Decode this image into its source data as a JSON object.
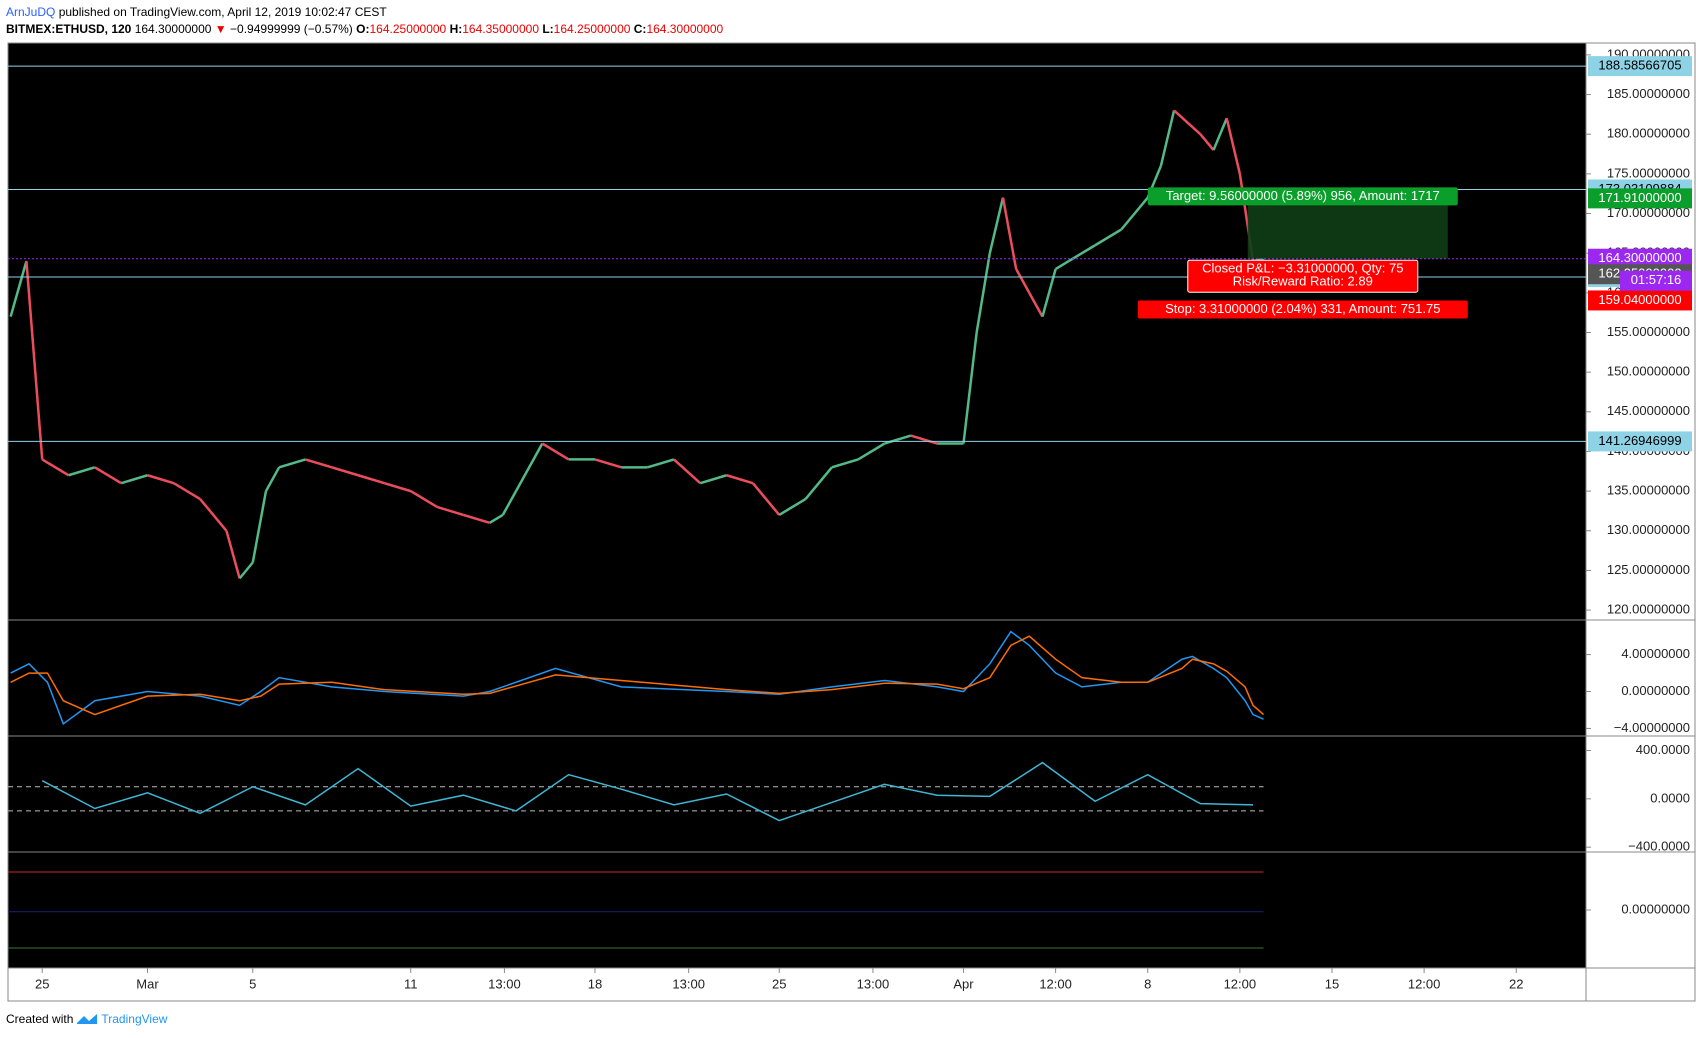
{
  "header": {
    "author": "ArnJuDQ",
    "published": "published on TradingView.com, April 12, 2019 10:02:47 CEST",
    "symbol": "BITMEX:ETHUSD, 120",
    "last": "164.30000000",
    "arrow": "▼",
    "change": "−0.94999999 (−0.57%)",
    "ohlc": [
      {
        "key": "O:",
        "text": "164.25000000"
      },
      {
        "key": "H:",
        "text": "164.35000000"
      },
      {
        "key": "L:",
        "text": "164.25000000"
      },
      {
        "key": "C:",
        "text": "164.30000000"
      }
    ]
  },
  "chart_data": [
    {
      "type": "line",
      "up_color": "#53b987",
      "down_color": "#eb4d5c",
      "x": [
        -1.2,
        -0.6,
        0,
        1,
        2,
        3,
        4,
        5,
        6,
        7,
        7.5,
        8,
        8.5,
        9,
        10,
        11,
        12,
        13,
        14,
        15,
        16,
        17,
        17.5,
        18,
        19,
        20,
        21,
        22,
        23,
        24,
        25,
        26,
        27,
        28,
        29,
        30,
        31,
        32,
        33,
        34,
        35,
        35.5,
        36,
        36.5,
        37,
        37.5,
        38,
        38.5,
        39,
        40,
        41,
        42,
        42.5,
        43,
        44,
        44.5,
        45,
        45.5,
        46,
        46.4
      ],
      "values": [
        157,
        164,
        139,
        137,
        138,
        136,
        137,
        136,
        134,
        130,
        124,
        126,
        135,
        138,
        139,
        138,
        137,
        136,
        135,
        133,
        132,
        131,
        132,
        135,
        141,
        139,
        139,
        138,
        138,
        139,
        136,
        137,
        136,
        132,
        134,
        138,
        139,
        141,
        142,
        141,
        141,
        155,
        165,
        172,
        163,
        160,
        157,
        163,
        164,
        166,
        168,
        172,
        176,
        183,
        180,
        178,
        182,
        175,
        164,
        164.3
      ],
      "xlim": [
        -1.3,
        58.65
      ],
      "xticks": [
        {
          "value": 0,
          "label": "25"
        },
        {
          "value": 4,
          "label": "Mar"
        },
        {
          "value": 8,
          "label": "5"
        },
        {
          "value": 14,
          "label": "11"
        },
        {
          "value": 17.56,
          "label": "13:00"
        },
        {
          "value": 21,
          "label": "18"
        },
        {
          "value": 24.56,
          "label": "13:00"
        },
        {
          "value": 28,
          "label": "25"
        },
        {
          "value": 31.56,
          "label": "13:00"
        },
        {
          "value": 35,
          "label": "Apr"
        },
        {
          "value": 38.5,
          "label": "12:00"
        },
        {
          "value": 42,
          "label": "8"
        },
        {
          "value": 45.5,
          "label": "12:00"
        },
        {
          "value": 49,
          "label": "15"
        },
        {
          "value": 52.5,
          "label": "12:00"
        },
        {
          "value": 56,
          "label": "22"
        }
      ],
      "ylim": [
        118.75,
        191.5
      ],
      "yticks": [
        {
          "value": 120,
          "label": "120.00000000"
        },
        {
          "value": 125,
          "label": "125.00000000"
        },
        {
          "value": 130,
          "label": "130.00000000"
        },
        {
          "value": 135,
          "label": "135.00000000"
        },
        {
          "value": 140,
          "label": "140.00000000"
        },
        {
          "value": 145,
          "label": "145.00000000"
        },
        {
          "value": 150,
          "label": "150.00000000"
        },
        {
          "value": 155,
          "label": "155.00000000"
        },
        {
          "value": 160,
          "label": "160.00000000"
        },
        {
          "value": 165,
          "label": "165.00000000"
        },
        {
          "value": 170,
          "label": "170.00000000"
        },
        {
          "value": 175,
          "label": "175.00000000"
        },
        {
          "value": 180,
          "label": "180.00000000"
        },
        {
          "value": 185,
          "label": "185.00000000"
        },
        {
          "value": 190,
          "label": "190.00000000"
        }
      ],
      "levels": [
        188.58566705,
        173.03109884,
        161.99042299,
        141.26946999
      ],
      "level_color": "#8ed2e6",
      "price_tags": [
        {
          "value": 171.91,
          "label": "171.91000000",
          "color": "#0a9e2a"
        },
        {
          "value": 164.3,
          "label": "164.30000000",
          "color": "#9c27f0"
        },
        {
          "value": 162.35,
          "label": "162.35000000",
          "color": "#555555"
        },
        {
          "value": 159.04,
          "label": "159.04000000",
          "color": "#ff0000"
        }
      ],
      "countdown": "01:57:16",
      "trade": {
        "x": [
          45.8,
          53.4
        ],
        "target": "Target: 9.56000000 (5.89%) 956, Amount: 1717",
        "pnl": "Closed P&L: −3.31000000, Qty: 75",
        "ratio": "Risk/Reward Ratio: 2.89",
        "stop": "Stop: 3.31000000 (2.04%) 331, Amount: 751.75"
      }
    },
    {
      "type": "line",
      "x": [
        -1.2,
        -0.5,
        0.2,
        0.8,
        2,
        4,
        6,
        7.5,
        8.3,
        9,
        11,
        13,
        16,
        17,
        19.5,
        22,
        26,
        28,
        30,
        32,
        34,
        35,
        36,
        36.8,
        37.5,
        38.5,
        39.5,
        41,
        42,
        43.3,
        43.7,
        44.5,
        45,
        45.7,
        46,
        46.4
      ],
      "series": [
        {
          "color": "#2196f3",
          "values": [
            2,
            3,
            1,
            -3.5,
            -1,
            0,
            -0.5,
            -1.5,
            0,
            1.5,
            0.5,
            0,
            -0.5,
            0,
            2.5,
            0.5,
            0,
            -0.3,
            0.5,
            1.2,
            0.5,
            0,
            3,
            6.5,
            5,
            2,
            0.5,
            1,
            1,
            3.5,
            3.8,
            2.5,
            1.5,
            -1,
            -2.5,
            -3
          ]
        },
        {
          "color": "#ff6d00",
          "values": [
            1,
            2,
            2,
            -1,
            -2.5,
            -0.5,
            -0.3,
            -1,
            -0.5,
            0.8,
            1,
            0.2,
            -0.3,
            -0.2,
            1.8,
            1.2,
            0.2,
            -0.2,
            0.2,
            0.9,
            0.8,
            0.3,
            1.5,
            5,
            6,
            3.5,
            1.5,
            1,
            1,
            2.5,
            3.5,
            3,
            2.2,
            0.5,
            -1.5,
            -2.5
          ]
        }
      ],
      "ylim": [
        -4.82,
        7.75
      ],
      "yticks": [
        {
          "value": 4,
          "label": "4.00000000"
        },
        {
          "value": 0,
          "label": "0.00000000"
        },
        {
          "value": -4,
          "label": "−4.00000000"
        }
      ]
    },
    {
      "type": "line",
      "x": [
        0,
        2,
        4,
        6,
        8,
        10,
        12,
        14,
        16,
        18,
        20,
        22,
        24,
        26,
        28,
        30,
        32,
        34,
        36,
        38,
        40,
        42,
        44,
        46
      ],
      "series": [
        {
          "color": "#3fb6d3",
          "values": [
            150,
            -80,
            50,
            -120,
            100,
            -50,
            250,
            -60,
            30,
            -100,
            200,
            80,
            -50,
            40,
            -180,
            -30,
            120,
            30,
            20,
            300,
            -20,
            200,
            -40,
            -50
          ]
        }
      ],
      "ylim": [
        -440,
        520
      ],
      "yticks": [
        {
          "value": 400,
          "label": "400.0000"
        },
        {
          "value": 0,
          "label": "0.0000"
        },
        {
          "value": -400,
          "label": "−400.0000"
        }
      ],
      "bands": [
        100,
        -100
      ]
    },
    {
      "type": "line",
      "series": [],
      "ylim": [
        -100,
        100
      ],
      "yticks": [
        {
          "value": 0,
          "label": "0.00000000"
        }
      ]
    }
  ],
  "footer": {
    "created": "Created with",
    "brand": "TradingView"
  }
}
